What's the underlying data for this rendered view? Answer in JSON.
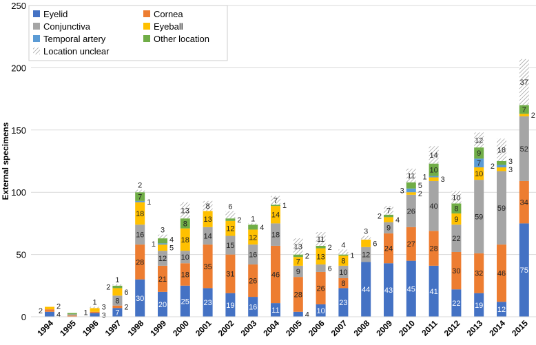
{
  "chart_data": {
    "type": "bar",
    "stacked": true,
    "title": "",
    "xlabel": "",
    "ylabel": "External specimens",
    "ylim": [
      0,
      250
    ],
    "yticks": [
      0,
      50,
      100,
      150,
      200,
      250
    ],
    "grid": true,
    "legend_position": "top-left",
    "categories": [
      "1994",
      "1995",
      "1996",
      "1997",
      "1998",
      "1999",
      "2000",
      "2001",
      "2002",
      "2003",
      "2004",
      "2005",
      "2006",
      "2007",
      "2008",
      "2009",
      "2010",
      "2011",
      "2012",
      "2013",
      "2014",
      "2015"
    ],
    "series": [
      {
        "name": "Eyelid",
        "color": "#4472C4",
        "values": [
          4,
          0,
          3,
          7,
          30,
          20,
          25,
          23,
          19,
          16,
          11,
          4,
          10,
          23,
          44,
          43,
          45,
          41,
          22,
          19,
          12,
          75
        ]
      },
      {
        "name": "Cornea",
        "color": "#ED7D31",
        "values": [
          2,
          1,
          1,
          2,
          28,
          21,
          18,
          35,
          31,
          26,
          46,
          28,
          26,
          8,
          0,
          24,
          27,
          28,
          30,
          32,
          46,
          34
        ]
      },
      {
        "name": "Conjunctiva",
        "color": "#A5A5A5",
        "values": [
          0,
          1,
          0,
          8,
          16,
          12,
          10,
          14,
          15,
          16,
          18,
          9,
          6,
          10,
          12,
          9,
          26,
          40,
          22,
          59,
          59,
          52
        ]
      },
      {
        "name": "Eyeball",
        "color": "#FFC000",
        "values": [
          2,
          0,
          3,
          6,
          18,
          5,
          18,
          13,
          12,
          12,
          14,
          7,
          13,
          8,
          6,
          4,
          2,
          3,
          9,
          10,
          3,
          2
        ]
      },
      {
        "name": "Temporal artery",
        "color": "#5B9BD5",
        "values": [
          0,
          0,
          0,
          0,
          1,
          1,
          0,
          0,
          0,
          0,
          0,
          0,
          0,
          0,
          0,
          0,
          3,
          1,
          0,
          7,
          2,
          0
        ]
      },
      {
        "name": "Other location",
        "color": "#70AD47",
        "values": [
          0,
          1,
          0,
          2,
          7,
          4,
          8,
          0,
          2,
          4,
          1,
          2,
          2,
          1,
          0,
          2,
          5,
          10,
          8,
          9,
          3,
          7
        ]
      },
      {
        "name": "Location unclear",
        "color": "hatched",
        "values": [
          0,
          0,
          1,
          1,
          2,
          3,
          13,
          8,
          6,
          1,
          7,
          13,
          11,
          4,
          3,
          7,
          11,
          14,
          10,
          12,
          18,
          37
        ]
      }
    ]
  }
}
